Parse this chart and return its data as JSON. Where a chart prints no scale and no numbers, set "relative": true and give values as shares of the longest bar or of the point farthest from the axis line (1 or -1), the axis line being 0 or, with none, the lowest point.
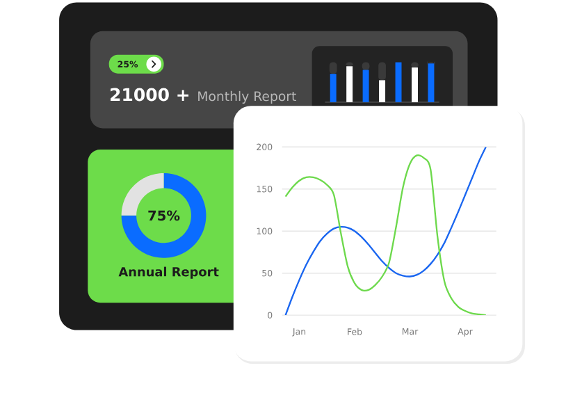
{
  "chart_data": [
    {
      "type": "other",
      "annotations": [
        "25%",
        "21000 +",
        "Monthly Report"
      ]
    },
    {
      "type": "bar",
      "relative": true,
      "categories": [
        null,
        null,
        null,
        null,
        null,
        null,
        null
      ],
      "values": [
        0.71,
        0.9,
        0.81,
        0.55,
        1,
        0.87,
        0.97
      ],
      "colors": [
        "#0a6cff",
        "#ffffff",
        "#0a6cff",
        "#ffffff",
        "#0a6cff",
        "#ffffff",
        "#0a6cff"
      ]
    },
    {
      "type": "donut",
      "title": "Annual Report",
      "categories": [
        null,
        null
      ],
      "values": [
        75,
        25
      ],
      "colors": [
        "#0a6cff",
        "#e2e2e2"
      ],
      "annotations": [
        "75%"
      ]
    },
    {
      "type": "line",
      "ylim": [
        0,
        200
      ],
      "yticks": [
        0,
        50,
        100,
        150,
        200
      ],
      "grid": "y",
      "categories": [
        null,
        null,
        "Jan",
        null,
        null,
        null,
        null,
        null,
        null,
        null,
        "Feb",
        null,
        null,
        null,
        null,
        null,
        null,
        null,
        "Mar",
        null,
        null,
        null,
        null,
        null,
        null,
        null,
        "Apr",
        null,
        null,
        null,
        null
      ],
      "series": [
        {
          "color": "#1a66f0",
          "values": [
            0,
            22,
            42,
            60,
            75,
            88,
            97,
            103,
            105,
            104,
            100,
            93,
            84,
            74,
            64,
            56,
            50,
            47,
            46,
            48,
            53,
            61,
            72,
            86,
            104,
            123,
            143,
            163,
            183,
            200,
            null
          ]
        },
        {
          "color": "#6dd94c",
          "values": [
            141,
            152,
            160,
            164,
            164,
            161,
            155,
            143,
            98,
            58,
            38,
            30,
            30,
            36,
            46,
            63,
            105,
            152,
            180,
            190,
            187,
            173,
            93,
            40,
            20,
            10,
            5,
            2,
            1,
            0,
            null
          ]
        }
      ]
    }
  ]
}
